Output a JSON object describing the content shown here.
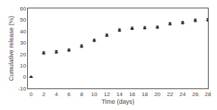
{
  "chart_data": {
    "type": "scatter",
    "x": [
      0,
      2,
      4,
      6,
      8,
      10,
      12,
      14,
      16,
      18,
      20,
      22,
      24,
      26,
      28
    ],
    "values": [
      0,
      21.0,
      22.0,
      23.5,
      27.0,
      32.0,
      36.5,
      41.0,
      42.5,
      43.0,
      43.5,
      46.5,
      47.5,
      49.5,
      50.0
    ],
    "yerr": [
      0.3,
      1.2,
      1.2,
      1.1,
      1.2,
      1.1,
      1.1,
      1.2,
      1.1,
      1.1,
      1.1,
      1.1,
      1.1,
      1.2,
      1.2
    ],
    "xlabel": "Time (days)",
    "ylabel": "Cumulative release (%)",
    "xlim": [
      -0.5,
      28
    ],
    "ylim": [
      -10,
      60
    ],
    "xticks": [
      0,
      2,
      4,
      6,
      8,
      10,
      12,
      14,
      16,
      18,
      20,
      22,
      24,
      26,
      28
    ],
    "yticks": [
      -10,
      0,
      10,
      20,
      30,
      40,
      50,
      60
    ],
    "color": "#2c2c2c",
    "marker": "triangle-up",
    "grid": false
  }
}
